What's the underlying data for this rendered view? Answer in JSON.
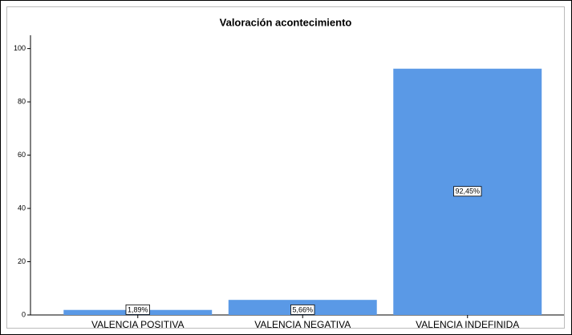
{
  "chart_data": {
    "type": "bar",
    "title": "Valoración acontecimiento",
    "categories": [
      "VALENCIA POSITIVA",
      "VALENCIA NEGATIVA",
      "VALENCIA INDEFINIDA"
    ],
    "values": [
      1.89,
      5.66,
      92.45
    ],
    "value_labels": [
      "1,89%",
      "5,66%",
      "92,45%"
    ],
    "color": "#5a99e6",
    "ylim": [
      0,
      105
    ],
    "yticks": [
      0,
      20,
      40,
      60,
      80,
      100
    ],
    "grid": false
  }
}
